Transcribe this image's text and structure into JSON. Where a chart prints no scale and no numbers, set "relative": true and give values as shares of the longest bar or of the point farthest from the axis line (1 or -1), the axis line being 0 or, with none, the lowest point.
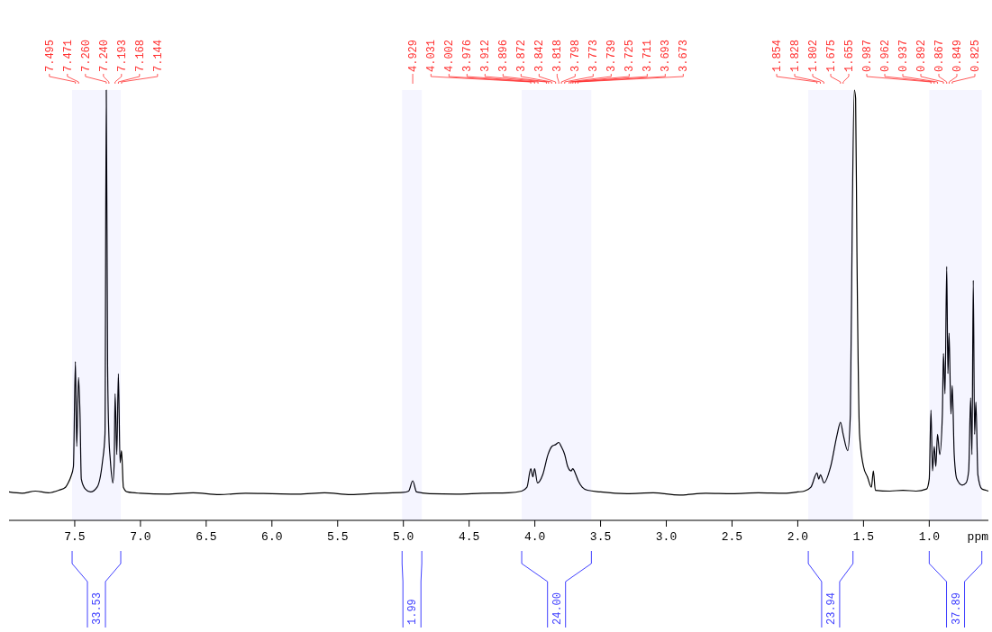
{
  "chart_data": {
    "type": "line",
    "relative": true,
    "xlabel": "ppm",
    "xlim": [
      8.0,
      0.55
    ],
    "xticks": [
      {
        "value": 7.5,
        "label": "7.5"
      },
      {
        "value": 7.0,
        "label": "7.0"
      },
      {
        "value": 6.5,
        "label": "6.5"
      },
      {
        "value": 6.0,
        "label": "6.0"
      },
      {
        "value": 5.5,
        "label": "5.5"
      },
      {
        "value": 5.0,
        "label": "5.0"
      },
      {
        "value": 4.5,
        "label": "4.5"
      },
      {
        "value": 4.0,
        "label": "4.0"
      },
      {
        "value": 3.5,
        "label": "3.5"
      },
      {
        "value": 3.0,
        "label": "3.0"
      },
      {
        "value": 2.5,
        "label": "2.5"
      },
      {
        "value": 2.0,
        "label": "2.0"
      },
      {
        "value": 1.5,
        "label": "1.5"
      },
      {
        "value": 1.0,
        "label": "1.0"
      }
    ],
    "series": [
      {
        "color": "#000000",
        "x": [
          8.0,
          7.9,
          7.8,
          7.7,
          7.62,
          7.57,
          7.55,
          7.53,
          7.51,
          7.495,
          7.485,
          7.471,
          7.46,
          7.45,
          7.42,
          7.38,
          7.33,
          7.29,
          7.27,
          7.26,
          7.25,
          7.24,
          7.23,
          7.21,
          7.2,
          7.193,
          7.18,
          7.168,
          7.155,
          7.144,
          7.13,
          7.1,
          7.0,
          6.8,
          6.6,
          6.4,
          6.2,
          6.0,
          5.8,
          5.6,
          5.4,
          5.2,
          5.0,
          4.96,
          4.929,
          4.9,
          4.8,
          4.6,
          4.4,
          4.2,
          4.1,
          4.06,
          4.031,
          4.015,
          4.002,
          3.98,
          3.94,
          3.9,
          3.87,
          3.842,
          3.818,
          3.8,
          3.773,
          3.75,
          3.725,
          3.711,
          3.693,
          3.67,
          3.64,
          3.6,
          3.5,
          3.3,
          3.1,
          2.9,
          2.7,
          2.5,
          2.3,
          2.1,
          2.0,
          1.95,
          1.9,
          1.854,
          1.84,
          1.828,
          1.8,
          1.75,
          1.7,
          1.675,
          1.655,
          1.62,
          1.6,
          1.585,
          1.57,
          1.56,
          1.55,
          1.53,
          1.5,
          1.47,
          1.44,
          1.425,
          1.41,
          1.3,
          1.2,
          1.1,
          1.02,
          1.0,
          0.987,
          0.975,
          0.962,
          0.95,
          0.937,
          0.92,
          0.9,
          0.892,
          0.88,
          0.867,
          0.858,
          0.849,
          0.835,
          0.825,
          0.81,
          0.79,
          0.75,
          0.72,
          0.7,
          0.685,
          0.675,
          0.665,
          0.655,
          0.645,
          0.63,
          0.6,
          0.57,
          0.55
        ],
        "values": [
          0.066,
          0.063,
          0.068,
          0.064,
          0.07,
          0.077,
          0.087,
          0.101,
          0.125,
          0.369,
          0.172,
          0.332,
          0.247,
          0.096,
          0.073,
          0.066,
          0.077,
          0.134,
          0.2,
          1.0,
          0.36,
          0.195,
          0.143,
          0.087,
          0.134,
          0.294,
          0.153,
          0.341,
          0.134,
          0.162,
          0.077,
          0.066,
          0.063,
          0.061,
          0.064,
          0.06,
          0.063,
          0.062,
          0.061,
          0.064,
          0.06,
          0.063,
          0.065,
          0.068,
          0.092,
          0.066,
          0.062,
          0.061,
          0.063,
          0.064,
          0.068,
          0.077,
          0.12,
          0.101,
          0.12,
          0.087,
          0.106,
          0.153,
          0.172,
          0.176,
          0.181,
          0.172,
          0.153,
          0.125,
          0.115,
          0.12,
          0.11,
          0.092,
          0.077,
          0.07,
          0.066,
          0.062,
          0.064,
          0.059,
          0.063,
          0.062,
          0.064,
          0.063,
          0.066,
          0.068,
          0.077,
          0.11,
          0.096,
          0.106,
          0.087,
          0.125,
          0.2,
          0.228,
          0.2,
          0.162,
          0.247,
          0.718,
          1.0,
          0.981,
          0.623,
          0.2,
          0.125,
          0.101,
          0.077,
          0.115,
          0.07,
          0.068,
          0.07,
          0.068,
          0.073,
          0.096,
          0.256,
          0.115,
          0.172,
          0.125,
          0.2,
          0.153,
          0.247,
          0.388,
          0.294,
          0.59,
          0.341,
          0.435,
          0.247,
          0.313,
          0.153,
          0.096,
          0.082,
          0.087,
          0.115,
          0.285,
          0.153,
          0.558,
          0.2,
          0.275,
          0.106,
          0.073,
          0.07,
          0.068
        ]
      }
    ],
    "annotations": [
      {
        "text": "7.495",
        "x": 7.495
      },
      {
        "text": "7.471",
        "x": 7.471
      },
      {
        "text": "7.260",
        "x": 7.26
      },
      {
        "text": "7.240",
        "x": 7.24
      },
      {
        "text": "7.193",
        "x": 7.193
      },
      {
        "text": "7.168",
        "x": 7.168
      },
      {
        "text": "7.144",
        "x": 7.144
      },
      {
        "text": "4.929",
        "x": 4.929
      },
      {
        "text": "4.031",
        "x": 4.031
      },
      {
        "text": "4.002",
        "x": 4.002
      },
      {
        "text": "3.976",
        "x": 3.976
      },
      {
        "text": "3.912",
        "x": 3.912
      },
      {
        "text": "3.896",
        "x": 3.896
      },
      {
        "text": "3.872",
        "x": 3.872
      },
      {
        "text": "3.842",
        "x": 3.842
      },
      {
        "text": "3.818",
        "x": 3.818
      },
      {
        "text": "3.798",
        "x": 3.798
      },
      {
        "text": "3.773",
        "x": 3.773
      },
      {
        "text": "3.739",
        "x": 3.739
      },
      {
        "text": "3.725",
        "x": 3.725
      },
      {
        "text": "3.711",
        "x": 3.711
      },
      {
        "text": "3.693",
        "x": 3.693
      },
      {
        "text": "3.673",
        "x": 3.673
      },
      {
        "text": "1.854",
        "x": 1.854
      },
      {
        "text": "1.828",
        "x": 1.828
      },
      {
        "text": "1.802",
        "x": 1.802
      },
      {
        "text": "1.675",
        "x": 1.675
      },
      {
        "text": "1.655",
        "x": 1.655
      },
      {
        "text": "0.987",
        "x": 0.987
      },
      {
        "text": "0.962",
        "x": 0.962
      },
      {
        "text": "0.937",
        "x": 0.937
      },
      {
        "text": "0.892",
        "x": 0.892
      },
      {
        "text": "0.867",
        "x": 0.867
      },
      {
        "text": "0.849",
        "x": 0.849
      },
      {
        "text": "0.825",
        "x": 0.825
      }
    ],
    "bands": [
      {
        "axis": "x",
        "from": 7.52,
        "to": 7.15,
        "label": "33.53",
        "color": "#4040ff"
      },
      {
        "axis": "x",
        "from": 5.01,
        "to": 4.86,
        "label": "1.99",
        "color": "#4040ff"
      },
      {
        "axis": "x",
        "from": 4.1,
        "to": 3.57,
        "label": "24.00",
        "color": "#4040ff"
      },
      {
        "axis": "x",
        "from": 1.92,
        "to": 1.58,
        "label": "23.94",
        "color": "#4040ff"
      },
      {
        "axis": "x",
        "from": 1.0,
        "to": 0.6,
        "label": "37.89",
        "color": "#4040ff"
      }
    ]
  }
}
